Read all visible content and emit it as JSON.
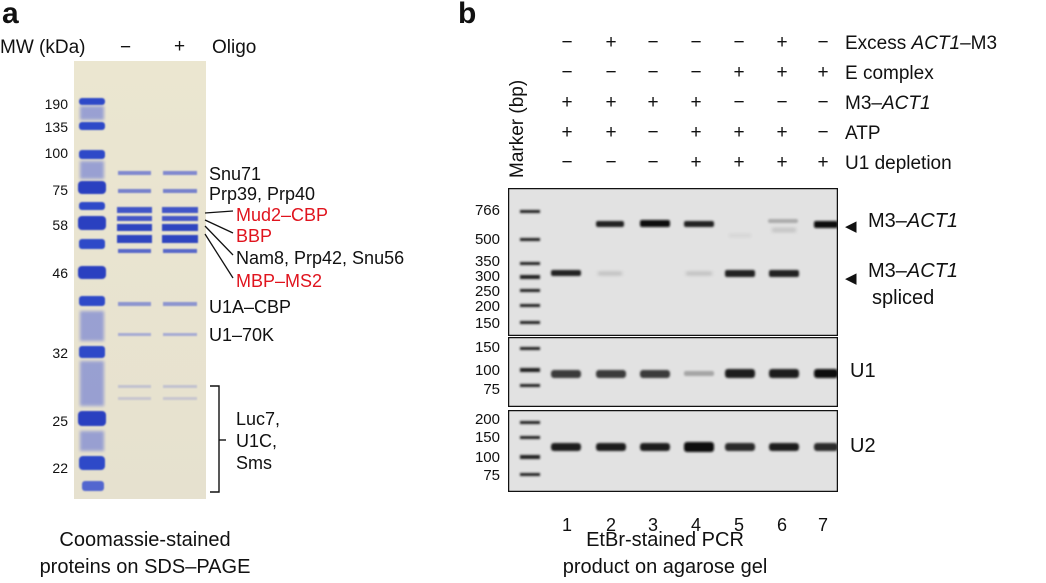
{
  "panel_a": {
    "letter": "a",
    "mw_header": "MW (kDa)",
    "lane_minus": "−",
    "lane_plus": "+",
    "oligo_label": "Oligo",
    "mw_ticks": [
      "190",
      "135",
      "100",
      "75",
      "58",
      "46",
      "32",
      "25",
      "22"
    ],
    "band_labels": {
      "snu71": "Snu71",
      "prp39_prp40": "Prp39, Prp40",
      "mud2_cbp": "Mud2–CBP",
      "bbp": "BBP",
      "nam8": "Nam8, Prp42, Snu56",
      "mbp_ms2": "MBP–MS2",
      "u1a_cbp": "U1A–CBP",
      "u1_70k": "U1–70K",
      "luc7": "Luc7,",
      "u1c": "U1C,",
      "sms": "Sms"
    },
    "red_color": "#e0141e",
    "caption_line1": "Coomassie-stained",
    "caption_line2": "proteins on SDS–PAGE"
  },
  "panel_b": {
    "letter": "b",
    "marker_label": "Marker (bp)",
    "conditions": [
      {
        "label_pre": "Excess ",
        "label_em": "ACT1",
        "label_post": "–M3",
        "values": [
          "−",
          "+",
          "−",
          "−",
          "−",
          "+",
          "−"
        ]
      },
      {
        "label_pre": "E complex",
        "label_em": "",
        "label_post": "",
        "values": [
          "−",
          "−",
          "−",
          "−",
          "+",
          "+",
          "+"
        ]
      },
      {
        "label_pre": "M3–",
        "label_em": "ACT1",
        "label_post": "",
        "values": [
          "+",
          "+",
          "+",
          "+",
          "−",
          "−",
          "−"
        ]
      },
      {
        "label_pre": "ATP",
        "label_em": "",
        "label_post": "",
        "values": [
          "+",
          "+",
          "−",
          "+",
          "+",
          "+",
          "−"
        ]
      },
      {
        "label_pre": "U1 depletion",
        "label_em": "",
        "label_post": "",
        "values": [
          "−",
          "−",
          "−",
          "+",
          "+",
          "+",
          "+"
        ]
      }
    ],
    "top_gel_ticks": [
      "766",
      "500",
      "350",
      "300",
      "250",
      "200",
      "150"
    ],
    "u1_gel_ticks": [
      "150",
      "100",
      "75"
    ],
    "u2_gel_ticks": [
      "200",
      "150",
      "100",
      "75"
    ],
    "right_labels": {
      "unspliced_pre": "M3–",
      "unspliced_em": "ACT1",
      "spliced_pre": "M3–",
      "spliced_em": "ACT1",
      "spliced_line2": "spliced",
      "u1": "U1",
      "u2": "U2"
    },
    "lane_numbers": [
      "1",
      "2",
      "3",
      "4",
      "5",
      "6",
      "7"
    ],
    "caption_line1": "EtBr-stained PCR",
    "caption_line2": "product on agarose gel"
  }
}
